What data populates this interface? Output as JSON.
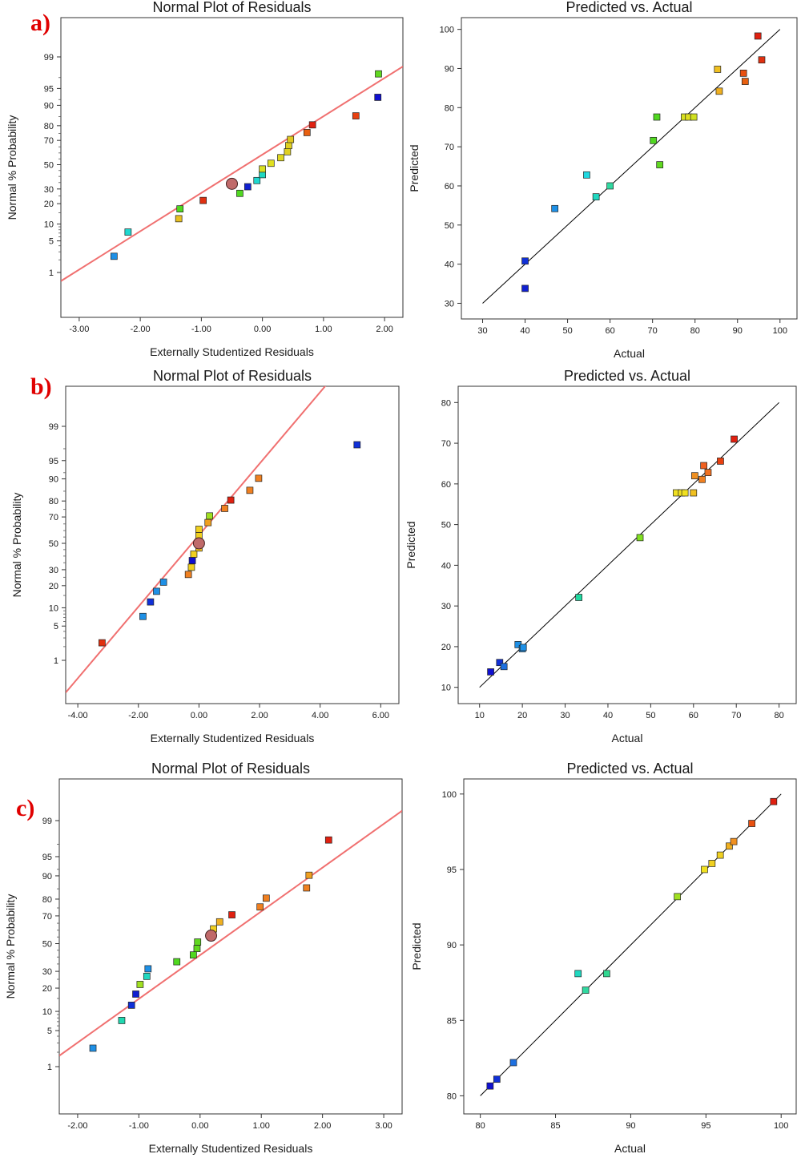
{
  "chart_data": [
    {
      "panel": "a)",
      "type": "scatter",
      "title": "Normal Plot of Residuals",
      "xlabel": "Externally Studentized Residuals",
      "ylabel": "Normal % Probability",
      "xlim": [
        -3.3,
        2.3
      ],
      "x_ticks": [
        -3,
        -2,
        -1,
        0,
        1,
        2
      ],
      "x_tick_labels": [
        "-3.00",
        "-2.00",
        "-1.00",
        "0.00",
        "1.00",
        "2.00"
      ],
      "y_scale": "probability",
      "y_ticks": [
        1,
        5,
        10,
        20,
        30,
        50,
        70,
        80,
        90,
        95,
        99
      ],
      "fit_line": {
        "x": [
          -3.3,
          2.3
        ],
        "y": [
          0.6,
          98.3
        ],
        "color": "#f07070"
      },
      "highlight": {
        "x": -0.5,
        "y": 34
      },
      "points": [
        {
          "x": -2.43,
          "y": 2.4,
          "color": "#1e90e6"
        },
        {
          "x": -2.2,
          "y": 7.3,
          "color": "#20d8d0"
        },
        {
          "x": -1.37,
          "y": 12.2,
          "color": "#e8c020"
        },
        {
          "x": -1.35,
          "y": 17,
          "color": "#50d820"
        },
        {
          "x": -0.97,
          "y": 22,
          "color": "#e03010"
        },
        {
          "x": -0.37,
          "y": 26.8,
          "color": "#50d820"
        },
        {
          "x": -0.24,
          "y": 31.7,
          "color": "#1020d0"
        },
        {
          "x": -0.09,
          "y": 36.6,
          "color": "#20d8d0"
        },
        {
          "x": 0,
          "y": 41.5,
          "color": "#20d8c0"
        },
        {
          "x": 0,
          "y": 46.3,
          "color": "#d8e020"
        },
        {
          "x": 0.14,
          "y": 51.2,
          "color": "#e0e020"
        },
        {
          "x": 0.3,
          "y": 56,
          "color": "#e0d820"
        },
        {
          "x": 0.41,
          "y": 61,
          "color": "#e0d020"
        },
        {
          "x": 0.43,
          "y": 66,
          "color": "#e0d020"
        },
        {
          "x": 0.46,
          "y": 70.7,
          "color": "#e0c820"
        },
        {
          "x": 0.73,
          "y": 75.6,
          "color": "#e86010"
        },
        {
          "x": 0.82,
          "y": 80.5,
          "color": "#e02010"
        },
        {
          "x": 1.53,
          "y": 85.4,
          "color": "#e84010"
        },
        {
          "x": 1.89,
          "y": 92.7,
          "color": "#1010d0"
        },
        {
          "x": 1.9,
          "y": 97.5,
          "color": "#60d820"
        }
      ]
    },
    {
      "panel": "a)",
      "type": "scatter",
      "title": "Predicted vs. Actual",
      "xlabel": "Actual",
      "ylabel": "Predicted",
      "xlim": [
        25,
        104
      ],
      "ylim": [
        26,
        103
      ],
      "x_ticks": [
        30,
        40,
        50,
        60,
        70,
        80,
        90,
        100
      ],
      "y_ticks": [
        30,
        40,
        50,
        60,
        70,
        80,
        90,
        100
      ],
      "fit_line": {
        "x": [
          30,
          100
        ],
        "y": [
          30,
          100
        ],
        "color": "#000000"
      },
      "points": [
        {
          "x": 40,
          "y": 33.8,
          "color": "#1020d0"
        },
        {
          "x": 40,
          "y": 40.8,
          "color": "#1030d8"
        },
        {
          "x": 47,
          "y": 54.2,
          "color": "#1e90e6"
        },
        {
          "x": 54.5,
          "y": 62.8,
          "color": "#20d8e0"
        },
        {
          "x": 56.7,
          "y": 57.2,
          "color": "#20d8c0"
        },
        {
          "x": 60,
          "y": 60,
          "color": "#30d8a0"
        },
        {
          "x": 70.2,
          "y": 71.6,
          "color": "#50d820"
        },
        {
          "x": 71,
          "y": 77.6,
          "color": "#50d820"
        },
        {
          "x": 71.7,
          "y": 65.4,
          "color": "#60d820"
        },
        {
          "x": 77.5,
          "y": 77.6,
          "color": "#d8e020"
        },
        {
          "x": 78.5,
          "y": 77.6,
          "color": "#e0e020"
        },
        {
          "x": 79.7,
          "y": 77.6,
          "color": "#d0e020"
        },
        {
          "x": 85.3,
          "y": 89.8,
          "color": "#f0c020"
        },
        {
          "x": 85.7,
          "y": 84.2,
          "color": "#f0b020"
        },
        {
          "x": 91.4,
          "y": 88.8,
          "color": "#e85010"
        },
        {
          "x": 91.8,
          "y": 86.7,
          "color": "#e86010"
        },
        {
          "x": 94.8,
          "y": 98.3,
          "color": "#e02010"
        },
        {
          "x": 95.7,
          "y": 92.2,
          "color": "#e03010"
        }
      ]
    },
    {
      "panel": "b)",
      "type": "scatter",
      "title": "Normal Plot of Residuals",
      "xlabel": "Externally Studentized Residuals",
      "ylabel": "Normal % Probability",
      "xlim": [
        -4.4,
        6.6
      ],
      "x_ticks": [
        -4,
        -2,
        0,
        2,
        4,
        6
      ],
      "x_tick_labels": [
        "-4.00",
        "-2.00",
        "0.00",
        "2.00",
        "4.00",
        "6.00"
      ],
      "y_scale": "probability",
      "y_ticks": [
        1,
        5,
        10,
        20,
        30,
        50,
        70,
        80,
        90,
        95,
        99
      ],
      "fit_line": {
        "x": [
          -4.4,
          4.4
        ],
        "y": [
          0.15,
          99.95
        ],
        "color": "#f07070"
      },
      "highlight": {
        "x": 0,
        "y": 50
      },
      "points": [
        {
          "x": -3.2,
          "y": 2.4,
          "color": "#e03010"
        },
        {
          "x": -1.85,
          "y": 7.3,
          "color": "#1e90e6"
        },
        {
          "x": -1.6,
          "y": 12.2,
          "color": "#1030d8"
        },
        {
          "x": -1.4,
          "y": 17,
          "color": "#1e90e6"
        },
        {
          "x": -1.17,
          "y": 22,
          "color": "#1e90e6"
        },
        {
          "x": -0.35,
          "y": 26.8,
          "color": "#f08020"
        },
        {
          "x": -0.25,
          "y": 31.7,
          "color": "#f0d020"
        },
        {
          "x": -0.22,
          "y": 36.6,
          "color": "#1010d0"
        },
        {
          "x": -0.17,
          "y": 41.5,
          "color": "#f0d020"
        },
        {
          "x": 0,
          "y": 46.3,
          "color": "#f0c020"
        },
        {
          "x": 0,
          "y": 51.2,
          "color": "#50d820"
        },
        {
          "x": 0,
          "y": 56,
          "color": "#f0d020"
        },
        {
          "x": 0,
          "y": 61,
          "color": "#f0d020"
        },
        {
          "x": 0.3,
          "y": 66,
          "color": "#f0a020"
        },
        {
          "x": 0.35,
          "y": 70.7,
          "color": "#a0e020"
        },
        {
          "x": 0.85,
          "y": 75.6,
          "color": "#f08020"
        },
        {
          "x": 1.05,
          "y": 80.5,
          "color": "#e02010"
        },
        {
          "x": 1.68,
          "y": 85.4,
          "color": "#f08020"
        },
        {
          "x": 1.97,
          "y": 90.2,
          "color": "#f08020"
        },
        {
          "x": 5.22,
          "y": 97.5,
          "color": "#1030d8"
        }
      ]
    },
    {
      "panel": "b)",
      "type": "scatter",
      "title": "Predicted vs. Actual",
      "xlabel": "Actual",
      "ylabel": "Predicted",
      "xlim": [
        5,
        84
      ],
      "ylim": [
        6,
        84
      ],
      "x_ticks": [
        10,
        20,
        30,
        40,
        50,
        60,
        70,
        80
      ],
      "y_ticks": [
        10,
        20,
        30,
        40,
        50,
        60,
        70,
        80
      ],
      "fit_line": {
        "x": [
          10,
          80
        ],
        "y": [
          10,
          80
        ],
        "color": "#000000"
      },
      "points": [
        {
          "x": 12.6,
          "y": 13.8,
          "color": "#1010d0"
        },
        {
          "x": 14.7,
          "y": 16.1,
          "color": "#1030d8"
        },
        {
          "x": 15.7,
          "y": 15.1,
          "color": "#1e70e0"
        },
        {
          "x": 19,
          "y": 20.5,
          "color": "#1e90e6"
        },
        {
          "x": 20,
          "y": 19.5,
          "color": "#1e90e6"
        },
        {
          "x": 20.2,
          "y": 19.8,
          "color": "#1e90e6"
        },
        {
          "x": 33.2,
          "y": 32.1,
          "color": "#20d8a0"
        },
        {
          "x": 47.5,
          "y": 46.8,
          "color": "#80e020"
        },
        {
          "x": 56,
          "y": 57.8,
          "color": "#f0e020"
        },
        {
          "x": 57.2,
          "y": 57.8,
          "color": "#f0e020"
        },
        {
          "x": 58,
          "y": 57.8,
          "color": "#f0e020"
        },
        {
          "x": 60,
          "y": 57.8,
          "color": "#f0c020"
        },
        {
          "x": 60.3,
          "y": 62,
          "color": "#f09020"
        },
        {
          "x": 62,
          "y": 61.1,
          "color": "#f08020"
        },
        {
          "x": 62.4,
          "y": 64.5,
          "color": "#f06020"
        },
        {
          "x": 63.4,
          "y": 62.8,
          "color": "#f07020"
        },
        {
          "x": 66.3,
          "y": 65.6,
          "color": "#e84010"
        },
        {
          "x": 69.5,
          "y": 71,
          "color": "#e02010"
        }
      ]
    },
    {
      "panel": "c)",
      "type": "scatter",
      "title": "Normal Plot of Residuals",
      "xlabel": "Externally Studentized Residuals",
      "ylabel": "Normal % Probability",
      "xlim": [
        -2.3,
        3.3
      ],
      "x_ticks": [
        -2,
        -1,
        0,
        1,
        2,
        3
      ],
      "x_tick_labels": [
        "-2.00",
        "-1.00",
        "0.00",
        "1.00",
        "2.00",
        "3.00"
      ],
      "y_scale": "probability",
      "y_ticks": [
        1,
        5,
        10,
        20,
        30,
        50,
        70,
        80,
        90,
        95,
        99
      ],
      "fit_line": {
        "x": [
          -2.3,
          3.3
        ],
        "y": [
          1.7,
          99.4
        ],
        "color": "#f07070"
      },
      "highlight": {
        "x": 0.18,
        "y": 56
      },
      "points": [
        {
          "x": -1.75,
          "y": 2.4,
          "color": "#1e90e6"
        },
        {
          "x": -1.28,
          "y": 7.3,
          "color": "#20d8b0"
        },
        {
          "x": -1.12,
          "y": 12.2,
          "color": "#1030d8"
        },
        {
          "x": -1.05,
          "y": 17,
          "color": "#1020d0"
        },
        {
          "x": -0.98,
          "y": 22,
          "color": "#a0e020"
        },
        {
          "x": -0.87,
          "y": 26.8,
          "color": "#20d8c0"
        },
        {
          "x": -0.85,
          "y": 31.7,
          "color": "#1e90e6"
        },
        {
          "x": -0.38,
          "y": 36.6,
          "color": "#50d820"
        },
        {
          "x": -0.11,
          "y": 41.5,
          "color": "#50d820"
        },
        {
          "x": -0.05,
          "y": 46.3,
          "color": "#60d820"
        },
        {
          "x": -0.04,
          "y": 51.2,
          "color": "#60d820"
        },
        {
          "x": 0.22,
          "y": 61,
          "color": "#f0d020"
        },
        {
          "x": 0.32,
          "y": 66,
          "color": "#f0b020"
        },
        {
          "x": 0.52,
          "y": 70.7,
          "color": "#e02010"
        },
        {
          "x": 0.98,
          "y": 75.6,
          "color": "#f08020"
        },
        {
          "x": 1.08,
          "y": 80.5,
          "color": "#f08020"
        },
        {
          "x": 1.74,
          "y": 85.4,
          "color": "#f08020"
        },
        {
          "x": 1.78,
          "y": 90.2,
          "color": "#f0a020"
        },
        {
          "x": 2.1,
          "y": 97.5,
          "color": "#e02010"
        }
      ]
    },
    {
      "panel": "c)",
      "type": "scatter",
      "title": "Predicted vs. Actual",
      "xlabel": "Actual",
      "ylabel": "Predicted",
      "xlim": [
        78.9,
        101
      ],
      "ylim": [
        78.8,
        101
      ],
      "x_ticks": [
        80,
        85,
        90,
        95,
        100
      ],
      "y_ticks": [
        80,
        85,
        90,
        95,
        100
      ],
      "fit_line": {
        "x": [
          80,
          100
        ],
        "y": [
          80,
          100
        ],
        "color": "#000000"
      },
      "points": [
        {
          "x": 80.65,
          "y": 80.65,
          "color": "#1010d0"
        },
        {
          "x": 81.1,
          "y": 81.1,
          "color": "#1030d8"
        },
        {
          "x": 82.2,
          "y": 82.2,
          "color": "#1e70e0"
        },
        {
          "x": 86.5,
          "y": 88.1,
          "color": "#20d8c0"
        },
        {
          "x": 87,
          "y": 87,
          "color": "#30d8a0"
        },
        {
          "x": 88.4,
          "y": 88.1,
          "color": "#30d890"
        },
        {
          "x": 93.1,
          "y": 93.2,
          "color": "#a0e020"
        },
        {
          "x": 94.9,
          "y": 95,
          "color": "#f0e020"
        },
        {
          "x": 95.4,
          "y": 95.4,
          "color": "#f0d020"
        },
        {
          "x": 95.95,
          "y": 95.95,
          "color": "#f0d020"
        },
        {
          "x": 96.55,
          "y": 96.55,
          "color": "#f0b020"
        },
        {
          "x": 96.85,
          "y": 96.85,
          "color": "#f09020"
        },
        {
          "x": 98.05,
          "y": 98.05,
          "color": "#e85010"
        },
        {
          "x": 99.5,
          "y": 99.5,
          "color": "#e02010"
        }
      ]
    }
  ]
}
